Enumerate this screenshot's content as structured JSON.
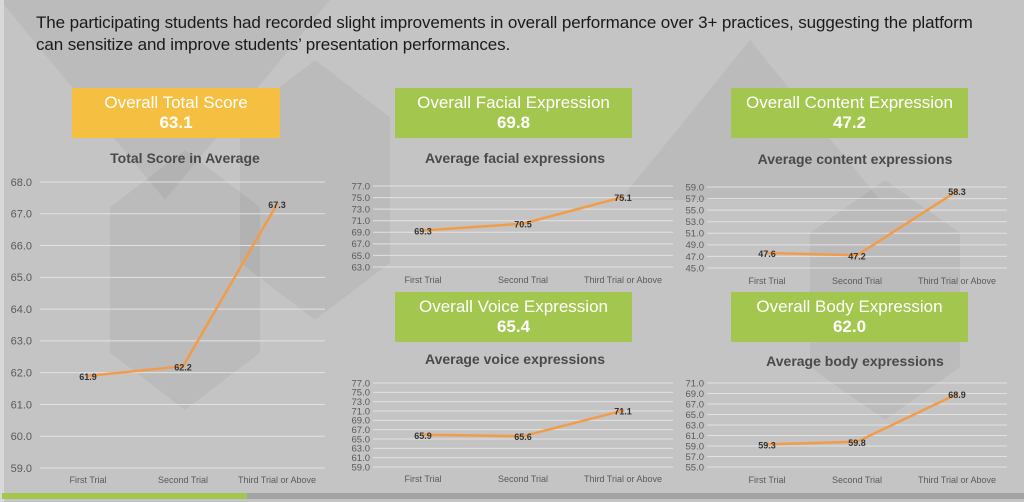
{
  "headline": "The participating students had recorded slight improvements in overall performance over 3+ practices, suggesting the platform can sensitize and improve students’ presentation performances.",
  "colors": {
    "kpi_total": "#f5bf42",
    "kpi_green": "#a2c64e",
    "line": "#f29c4a",
    "gridline": "#e2e2e2",
    "axis_text": "#5a5a5a",
    "label_text": "#333333"
  },
  "kpis": [
    {
      "label": "Overall Total Score",
      "value": "63.1"
    },
    {
      "label": "Overall Facial Expression",
      "value": "69.8"
    },
    {
      "label": "Overall Content Expression",
      "value": "47.2"
    },
    {
      "label": "Overall Voice Expression",
      "value": "65.4"
    },
    {
      "label": "Overall Body Expression",
      "value": "62.0"
    }
  ],
  "progress": {
    "fraction": 0.24
  },
  "chart_data": [
    {
      "type": "line",
      "title": "Total Score in Average",
      "categories": [
        "First Trial",
        "Second Trial",
        "Third Trial or Above"
      ],
      "values": [
        61.9,
        62.2,
        67.3
      ],
      "data_labels": [
        "61.9",
        "62.2",
        "67.3"
      ],
      "ylim": [
        59.0,
        68.0
      ],
      "yticks": [
        "59.0",
        "60.0",
        "61.0",
        "62.0",
        "63.0",
        "64.0",
        "65.0",
        "66.0",
        "67.0",
        "68.0"
      ],
      "grid": true,
      "xlabel": "",
      "ylabel": ""
    },
    {
      "type": "line",
      "title": "Average facial expressions",
      "categories": [
        "First Trial",
        "Second Trial",
        "Third Trial or Above"
      ],
      "values": [
        69.3,
        70.5,
        75.1
      ],
      "data_labels": [
        "69.3",
        "70.5",
        "75.1"
      ],
      "ylim": [
        63.0,
        77.0
      ],
      "yticks": [
        "63.0",
        "65.0",
        "67.0",
        "69.0",
        "71.0",
        "73.0",
        "75.0",
        "77.0"
      ],
      "grid": true,
      "xlabel": "",
      "ylabel": ""
    },
    {
      "type": "line",
      "title": "Average content expressions",
      "categories": [
        "First Trial",
        "Second Trial",
        "Third Trial or Above"
      ],
      "values": [
        47.6,
        47.2,
        58.3
      ],
      "data_labels": [
        "47.6",
        "47.2",
        "58.3"
      ],
      "ylim": [
        45.0,
        59.0
      ],
      "yticks": [
        "45.0",
        "47.0",
        "49.0",
        "51.0",
        "53.0",
        "55.0",
        "57.0",
        "59.0"
      ],
      "grid": true,
      "xlabel": "",
      "ylabel": ""
    },
    {
      "type": "line",
      "title": "Average voice expressions",
      "categories": [
        "First Trial",
        "Second Trial",
        "Third Trial or Above"
      ],
      "values": [
        65.9,
        65.6,
        71.1
      ],
      "data_labels": [
        "65.9",
        "65.6",
        "71.1"
      ],
      "ylim": [
        59.0,
        77.0
      ],
      "yticks": [
        "59.0",
        "61.0",
        "63.0",
        "65.0",
        "67.0",
        "69.0",
        "71.0",
        "73.0",
        "75.0",
        "77.0"
      ],
      "grid": true,
      "xlabel": "",
      "ylabel": ""
    },
    {
      "type": "line",
      "title": "Average body expressions",
      "categories": [
        "First Trial",
        "Second Trial",
        "Third Trial or Above"
      ],
      "values": [
        59.3,
        59.8,
        68.9
      ],
      "data_labels": [
        "59.3",
        "59.8",
        "68.9"
      ],
      "ylim": [
        55.0,
        71.0
      ],
      "yticks": [
        "55.0",
        "57.0",
        "59.0",
        "61.0",
        "63.0",
        "65.0",
        "67.0",
        "69.0",
        "71.0"
      ],
      "grid": true,
      "xlabel": "",
      "ylabel": ""
    }
  ]
}
